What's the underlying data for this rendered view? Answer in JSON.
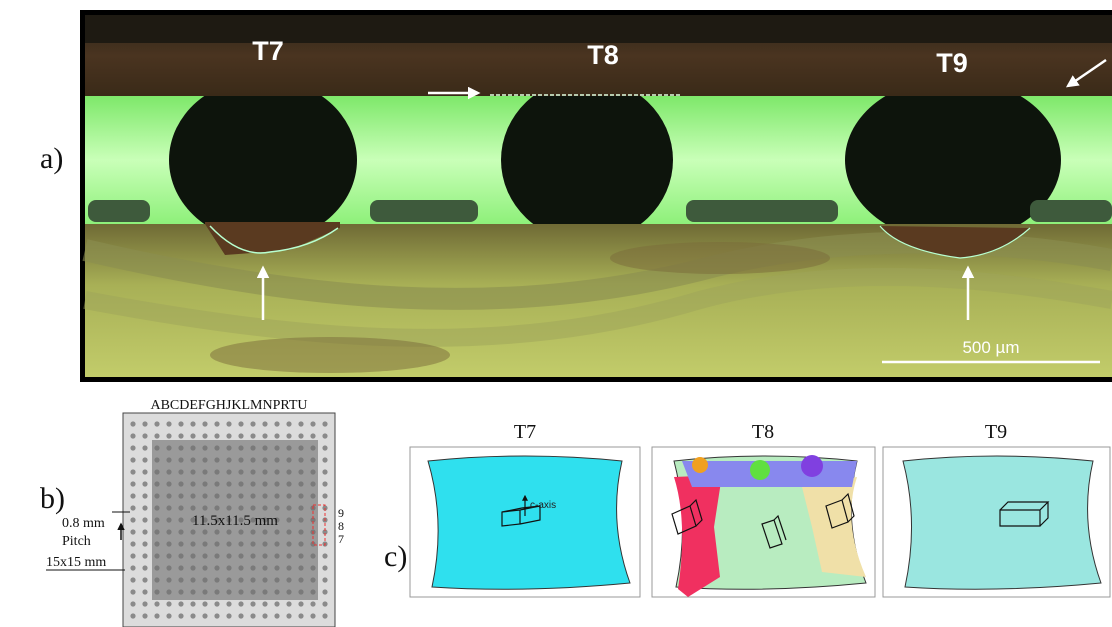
{
  "panels": {
    "a": {
      "label": "a)",
      "solder_joints": [
        "T7",
        "T8",
        "T9"
      ],
      "scale_bar": "500 µm"
    },
    "b": {
      "label": "b)",
      "columns": "ABCDEFGHJKLMNPRTU",
      "pitch": "0.8 mm",
      "pitch_word": "Pitch",
      "die_size": "11.5x11.5 mm",
      "rows": [
        "9",
        "8",
        "7"
      ],
      "package_size": "15x15 mm"
    },
    "c": {
      "label": "c)",
      "maps": [
        "T7",
        "T8",
        "T9"
      ],
      "axis_label": "c-axis"
    }
  }
}
